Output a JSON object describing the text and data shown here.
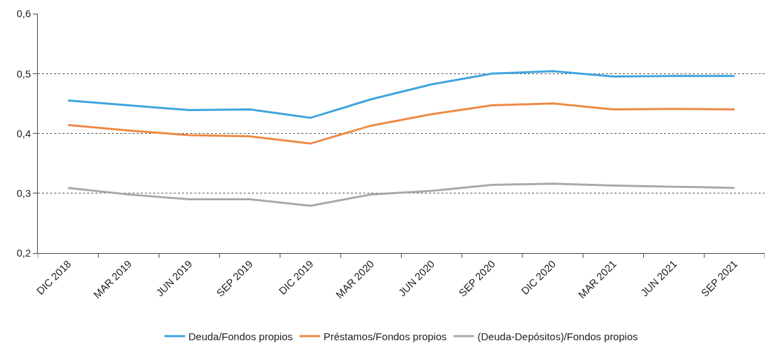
{
  "chart_data": {
    "type": "line",
    "categories": [
      "DIC 2018",
      "MAR 2019",
      "JUN 2019",
      "SEP 2019",
      "DIC 2019",
      "MAR 2020",
      "JUN 2020",
      "SEP 2020",
      "DIC 2020",
      "MAR 2021",
      "JUN 2021",
      "SEP 2021"
    ],
    "series": [
      {
        "name": "Deuda/Fondos propios",
        "color": "#3fa4dc",
        "values": [
          0.455,
          0.447,
          0.439,
          0.44,
          0.426,
          0.457,
          0.482,
          0.5,
          0.504,
          0.495,
          0.496,
          0.496
        ]
      },
      {
        "name": "Préstamos/Fondos propios",
        "color": "#ee8a45",
        "values": [
          0.414,
          0.405,
          0.397,
          0.395,
          0.383,
          0.413,
          0.432,
          0.447,
          0.45,
          0.44,
          0.441,
          0.44
        ]
      },
      {
        "name": "(Deuda-Depósitos)/Fondos propios",
        "color": "#a7a9ac",
        "values": [
          0.309,
          0.298,
          0.29,
          0.29,
          0.279,
          0.298,
          0.304,
          0.314,
          0.316,
          0.313,
          0.311,
          0.309
        ]
      }
    ],
    "ylim": [
      0.2,
      0.6
    ],
    "yticks": [
      {
        "value": 0.2,
        "label": "0,2"
      },
      {
        "value": 0.3,
        "label": "0,3"
      },
      {
        "value": 0.4,
        "label": "0,4"
      },
      {
        "value": 0.5,
        "label": "0,5"
      },
      {
        "value": 0.6,
        "label": "0,6"
      }
    ],
    "grid": "y",
    "legend": "bottom",
    "marker": "none",
    "line_style": "solid"
  }
}
